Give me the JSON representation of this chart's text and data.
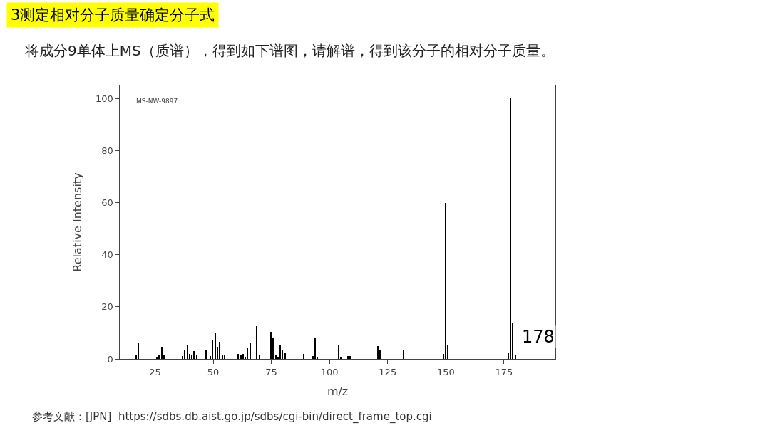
{
  "chart_data": {
    "type": "bar",
    "title": "3测定相对分子质量确定分子式",
    "subtitle": "将成分9单体上MS（质谱），得到如下谱图，请解谱，得到该分子的相对分子质量。",
    "xlabel": "m/z",
    "ylabel": "Relative Intensity",
    "x": [
      17,
      18,
      26,
      27,
      28,
      29,
      37,
      38,
      39,
      40,
      41,
      42,
      43,
      47,
      49,
      50,
      51,
      52,
      53,
      54,
      55,
      61,
      62,
      63,
      64,
      65,
      66,
      69,
      70,
      75,
      76,
      77,
      78,
      79,
      80,
      81,
      89,
      93,
      94,
      95,
      104,
      105,
      108,
      109,
      121,
      122,
      132,
      149,
      150,
      151,
      177,
      178,
      179,
      180
    ],
    "values": [
      1.3,
      6.4,
      0.7,
      1.3,
      4.6,
      1.3,
      1.1,
      3.6,
      5.2,
      2,
      1.3,
      2.9,
      1.3,
      3.6,
      1.1,
      7.1,
      9.8,
      4.6,
      6.5,
      1.3,
      1.3,
      2,
      1.6,
      2,
      0.9,
      4,
      6,
      12.5,
      1.3,
      10.3,
      8.2,
      1.6,
      0.7,
      5.4,
      3.4,
      2.5,
      2,
      1.1,
      7.9,
      0.7,
      5.6,
      0.7,
      1.2,
      1.1,
      4.9,
      3.2,
      3.2,
      2,
      60,
      5.4,
      2.4,
      100,
      13.6,
      1.6
    ],
    "color": "#000000",
    "xlim": [
      10,
      197
    ],
    "xticks": [
      25,
      50,
      75,
      100,
      125,
      150,
      175
    ],
    "ylim": [
      0,
      105
    ],
    "yticks": [
      0,
      20,
      40,
      60,
      80,
      100
    ],
    "annotations": [
      "MS-NW-9897",
      "178",
      "参考文献：[JPN]  https://sdbs.db.aist.go.jp/sdbs/cgi-bin/direct_frame_top.cgi"
    ]
  }
}
